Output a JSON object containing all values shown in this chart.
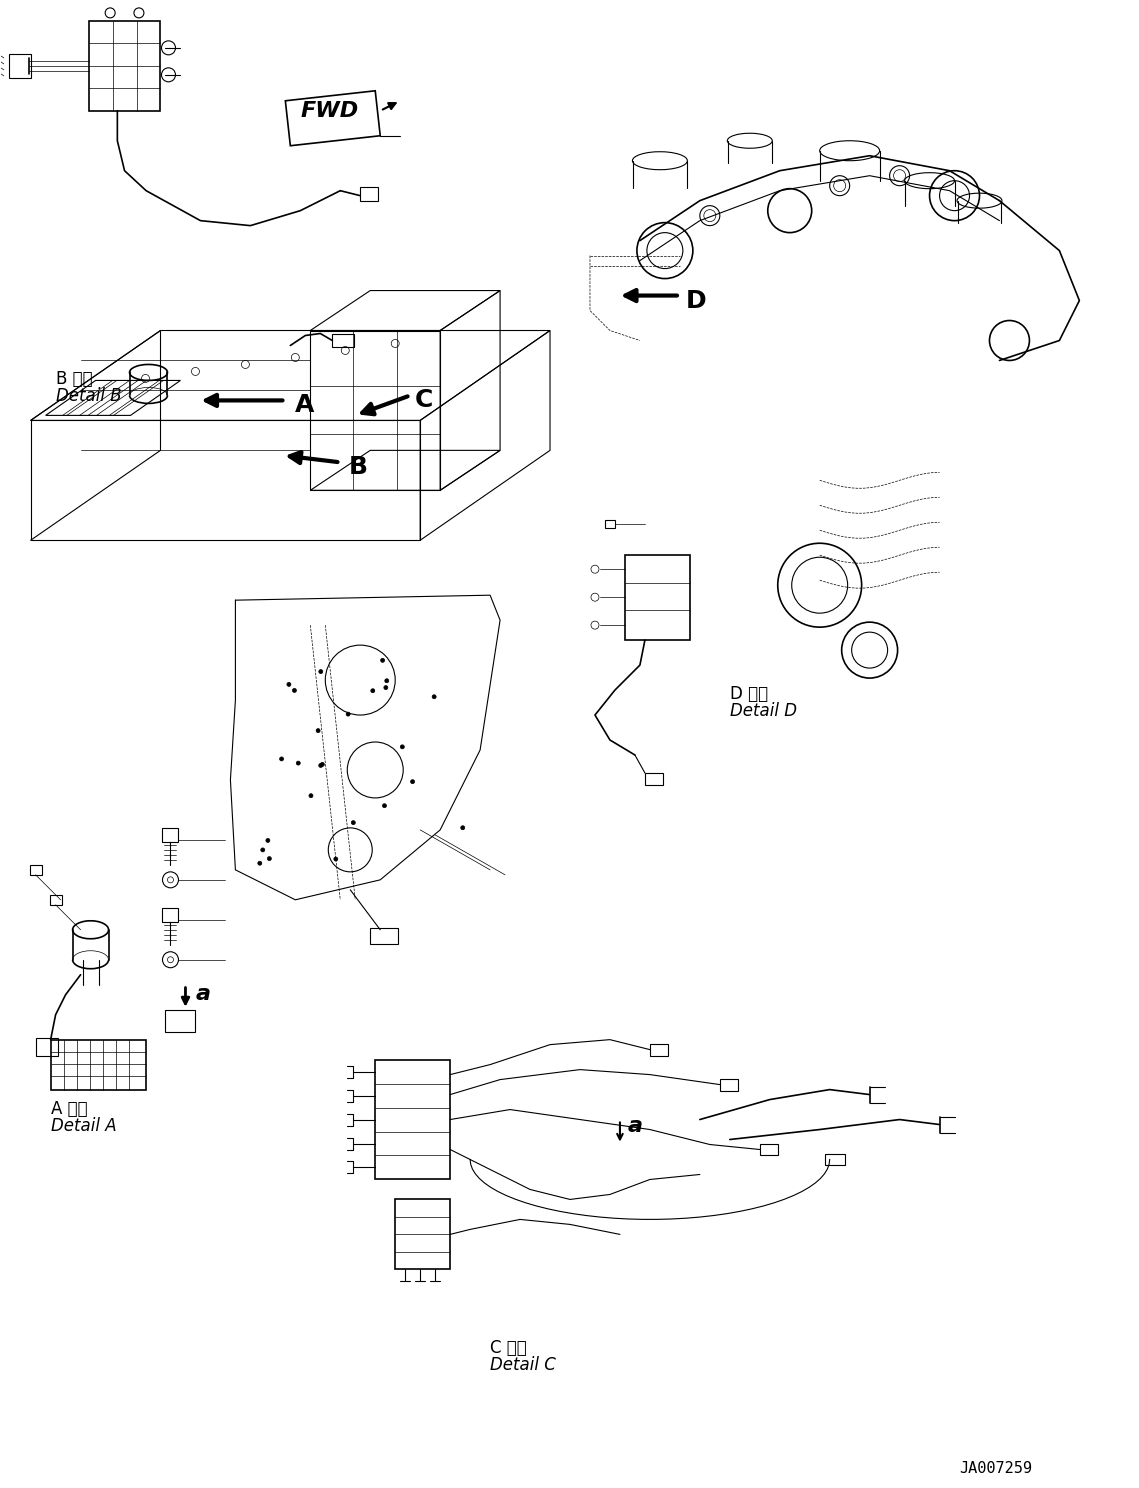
{
  "background_color": "#ffffff",
  "line_color": "#000000",
  "fig_width": 11.39,
  "fig_height": 14.88,
  "dpi": 100,
  "part_number": "JA007259",
  "labels": {
    "detail_b_ja": "B 詳細",
    "detail_b_en": "Detail B",
    "detail_a_ja": "A 詳細",
    "detail_a_en": "Detail A",
    "detail_c_ja": "C 詳細",
    "detail_c_en": "Detail C",
    "detail_d_ja": "D 詳細",
    "detail_d_en": "Detail D",
    "fwd": "FWD",
    "arrow_a": "A",
    "arrow_b": "B",
    "arrow_c": "C",
    "arrow_d": "D",
    "small_a": "a",
    "small_a2": "a"
  }
}
